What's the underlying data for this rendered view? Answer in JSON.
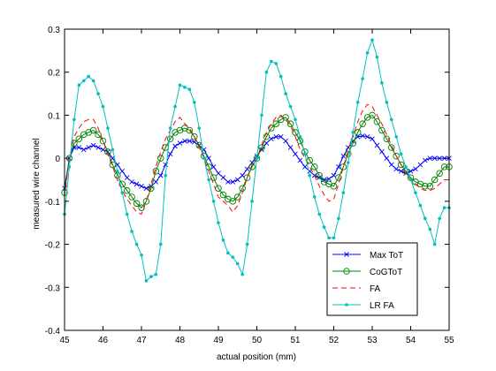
{
  "chart_data": {
    "type": "line",
    "xlabel": "actual position (mm)",
    "ylabel": "measured wire channel",
    "xlim": [
      45,
      55
    ],
    "ylim": [
      -0.4,
      0.3
    ],
    "xticks": [
      45,
      46,
      47,
      48,
      49,
      50,
      51,
      52,
      53,
      54,
      55
    ],
    "yticks": [
      -0.4,
      -0.3,
      -0.2,
      -0.1,
      0,
      0.1,
      0.2,
      0.3
    ],
    "xtick_labels": [
      "45",
      "46",
      "47",
      "48",
      "49",
      "50",
      "51",
      "52",
      "53",
      "54",
      "55"
    ],
    "ytick_labels": [
      "-0.4",
      "-0.3",
      "-0.2",
      "-0.1",
      "0",
      "0.1",
      "0.2",
      "0.3"
    ],
    "legend_position": "bottom-right",
    "series": [
      {
        "name": "Max ToT",
        "color": "#0000ff",
        "line": "solid",
        "marker": "x",
        "x": [
          45.0,
          45.125,
          45.25,
          45.375,
          45.5,
          45.625,
          45.75,
          45.875,
          46.0,
          46.125,
          46.25,
          46.375,
          46.5,
          46.625,
          46.75,
          46.875,
          47.0,
          47.125,
          47.25,
          47.375,
          47.5,
          47.625,
          47.75,
          47.875,
          48.0,
          48.125,
          48.25,
          48.375,
          48.5,
          48.625,
          48.75,
          48.875,
          49.0,
          49.125,
          49.25,
          49.375,
          49.5,
          49.625,
          49.75,
          49.875,
          50.0,
          50.125,
          50.25,
          50.375,
          50.5,
          50.625,
          50.75,
          50.875,
          51.0,
          51.125,
          51.25,
          51.375,
          51.5,
          51.625,
          51.75,
          51.875,
          52.0,
          52.125,
          52.25,
          52.375,
          52.5,
          52.625,
          52.75,
          52.875,
          53.0,
          53.125,
          53.25,
          53.375,
          53.5,
          53.625,
          53.75,
          53.875,
          54.0,
          54.125,
          54.25,
          54.375,
          54.5,
          54.625,
          54.75,
          54.875,
          55.0
        ],
        "y": [
          -0.07,
          0.0,
          0.025,
          0.025,
          0.02,
          0.025,
          0.03,
          0.025,
          0.02,
          0.015,
          0.0,
          -0.015,
          -0.03,
          -0.045,
          -0.055,
          -0.06,
          -0.065,
          -0.07,
          -0.065,
          -0.055,
          -0.04,
          -0.015,
          0.01,
          0.028,
          0.035,
          0.04,
          0.04,
          0.038,
          0.03,
          0.02,
          0.0,
          -0.02,
          -0.035,
          -0.045,
          -0.055,
          -0.055,
          -0.05,
          -0.04,
          -0.025,
          -0.01,
          0.005,
          0.02,
          0.035,
          0.045,
          0.05,
          0.05,
          0.04,
          0.025,
          0.01,
          -0.005,
          -0.02,
          -0.03,
          -0.04,
          -0.045,
          -0.05,
          -0.048,
          -0.04,
          -0.02,
          0.005,
          0.025,
          0.04,
          0.05,
          0.052,
          0.05,
          0.045,
          0.03,
          0.015,
          0.0,
          -0.015,
          -0.025,
          -0.03,
          -0.035,
          -0.03,
          -0.025,
          -0.015,
          -0.005,
          0.0,
          0.0,
          0.0,
          0.0,
          0.0
        ]
      },
      {
        "name": "CoGToT",
        "color": "#008000",
        "line": "solid",
        "marker": "o",
        "x": [
          45.0,
          45.125,
          45.25,
          45.375,
          45.5,
          45.625,
          45.75,
          45.875,
          46.0,
          46.125,
          46.25,
          46.375,
          46.5,
          46.625,
          46.75,
          46.875,
          47.0,
          47.125,
          47.25,
          47.375,
          47.5,
          47.625,
          47.75,
          47.875,
          48.0,
          48.125,
          48.25,
          48.375,
          48.5,
          48.625,
          48.75,
          48.875,
          49.0,
          49.125,
          49.25,
          49.375,
          49.5,
          49.625,
          49.75,
          49.875,
          50.0,
          50.125,
          50.25,
          50.375,
          50.5,
          50.625,
          50.75,
          50.875,
          51.0,
          51.125,
          51.25,
          51.375,
          51.5,
          51.625,
          51.75,
          51.875,
          52.0,
          52.125,
          52.25,
          52.375,
          52.5,
          52.625,
          52.75,
          52.875,
          53.0,
          53.125,
          53.25,
          53.375,
          53.5,
          53.625,
          53.75,
          53.875,
          54.0,
          54.125,
          54.25,
          54.375,
          54.5,
          54.625,
          54.75,
          54.875,
          55.0
        ],
        "y": [
          -0.08,
          0.0,
          0.035,
          0.045,
          0.055,
          0.06,
          0.065,
          0.055,
          0.04,
          0.015,
          -0.015,
          -0.04,
          -0.06,
          -0.075,
          -0.09,
          -0.105,
          -0.115,
          -0.1,
          -0.07,
          -0.03,
          0.0,
          0.025,
          0.045,
          0.06,
          0.065,
          0.07,
          0.065,
          0.05,
          0.03,
          0.005,
          -0.02,
          -0.045,
          -0.07,
          -0.085,
          -0.095,
          -0.1,
          -0.09,
          -0.07,
          -0.045,
          -0.02,
          0.0,
          0.025,
          0.05,
          0.07,
          0.08,
          0.09,
          0.095,
          0.08,
          0.06,
          0.04,
          0.015,
          -0.005,
          -0.02,
          -0.04,
          -0.055,
          -0.06,
          -0.065,
          -0.045,
          -0.02,
          0.01,
          0.035,
          0.06,
          0.08,
          0.095,
          0.1,
          0.085,
          0.065,
          0.045,
          0.025,
          0.005,
          -0.015,
          -0.03,
          -0.045,
          -0.055,
          -0.06,
          -0.065,
          -0.065,
          -0.05,
          -0.035,
          -0.02,
          -0.02
        ]
      },
      {
        "name": "FA",
        "color": "#ff0000",
        "line": "dashed",
        "marker": "none",
        "x": [
          45.0,
          45.125,
          45.25,
          45.375,
          45.5,
          45.625,
          45.75,
          45.875,
          46.0,
          46.125,
          46.25,
          46.375,
          46.5,
          46.625,
          46.75,
          46.875,
          47.0,
          47.125,
          47.25,
          47.375,
          47.5,
          47.625,
          47.75,
          47.875,
          48.0,
          48.125,
          48.25,
          48.375,
          48.5,
          48.625,
          48.75,
          48.875,
          49.0,
          49.125,
          49.25,
          49.375,
          49.5,
          49.625,
          49.75,
          49.875,
          50.0,
          50.125,
          50.25,
          50.375,
          50.5,
          50.625,
          50.75,
          50.875,
          51.0,
          51.125,
          51.25,
          51.375,
          51.5,
          51.625,
          51.75,
          51.875,
          52.0,
          52.125,
          52.25,
          52.375,
          52.5,
          52.625,
          52.75,
          52.875,
          53.0,
          53.125,
          53.25,
          53.375,
          53.5,
          53.625,
          53.75,
          53.875,
          54.0,
          54.125,
          54.25,
          54.375,
          54.5,
          54.625,
          54.75,
          54.875,
          55.0
        ],
        "y": [
          -0.09,
          0.0,
          0.05,
          0.07,
          0.085,
          0.09,
          0.09,
          0.07,
          0.04,
          0.01,
          -0.02,
          -0.05,
          -0.075,
          -0.095,
          -0.11,
          -0.125,
          -0.13,
          -0.1,
          -0.06,
          -0.02,
          0.015,
          0.045,
          0.065,
          0.085,
          0.095,
          0.08,
          0.07,
          0.05,
          0.025,
          0.0,
          -0.03,
          -0.06,
          -0.09,
          -0.1,
          -0.11,
          -0.125,
          -0.11,
          -0.08,
          -0.045,
          -0.015,
          0.0,
          0.03,
          0.06,
          0.08,
          0.095,
          0.1,
          0.09,
          0.075,
          0.05,
          0.02,
          0.0,
          -0.02,
          -0.04,
          -0.065,
          -0.085,
          -0.1,
          -0.095,
          -0.06,
          -0.02,
          0.02,
          0.05,
          0.085,
          0.11,
          0.125,
          0.12,
          0.1,
          0.08,
          0.055,
          0.03,
          0.005,
          -0.015,
          -0.035,
          -0.05,
          -0.06,
          -0.07,
          -0.075,
          -0.075,
          -0.07,
          -0.06,
          -0.05,
          -0.05
        ]
      },
      {
        "name": "LR FA",
        "color": "#00bfbf",
        "line": "solid",
        "marker": ".",
        "x": [
          45.0,
          45.125,
          45.25,
          45.375,
          45.5,
          45.625,
          45.75,
          45.875,
          46.0,
          46.125,
          46.25,
          46.375,
          46.5,
          46.625,
          46.75,
          46.875,
          47.0,
          47.125,
          47.25,
          47.375,
          47.5,
          47.625,
          47.75,
          47.875,
          48.0,
          48.125,
          48.25,
          48.375,
          48.5,
          48.625,
          48.75,
          48.875,
          49.0,
          49.125,
          49.25,
          49.375,
          49.5,
          49.625,
          49.75,
          49.875,
          50.0,
          50.125,
          50.25,
          50.375,
          50.5,
          50.625,
          50.75,
          50.875,
          51.0,
          51.125,
          51.25,
          51.375,
          51.5,
          51.625,
          51.75,
          51.875,
          52.0,
          52.125,
          52.25,
          52.375,
          52.5,
          52.625,
          52.75,
          52.875,
          53.0,
          53.125,
          53.25,
          53.375,
          53.5,
          53.625,
          53.75,
          53.875,
          54.0,
          54.125,
          54.25,
          54.375,
          54.5,
          54.625,
          54.75,
          54.875,
          55.0
        ],
        "y": [
          -0.13,
          -0.02,
          0.09,
          0.17,
          0.18,
          0.19,
          0.18,
          0.15,
          0.12,
          0.07,
          0.02,
          -0.03,
          -0.08,
          -0.13,
          -0.17,
          -0.2,
          -0.225,
          -0.285,
          -0.275,
          -0.27,
          -0.2,
          -0.04,
          0.07,
          0.12,
          0.17,
          0.165,
          0.16,
          0.13,
          0.07,
          0.0,
          -0.05,
          -0.1,
          -0.15,
          -0.19,
          -0.22,
          -0.23,
          -0.245,
          -0.27,
          -0.2,
          -0.1,
          0.0,
          0.1,
          0.2,
          0.225,
          0.22,
          0.19,
          0.15,
          0.12,
          0.09,
          0.05,
          0.01,
          -0.04,
          -0.09,
          -0.13,
          -0.16,
          -0.185,
          -0.185,
          -0.14,
          -0.08,
          -0.01,
          0.06,
          0.13,
          0.185,
          0.245,
          0.275,
          0.235,
          0.175,
          0.13,
          0.09,
          0.05,
          0.01,
          -0.02,
          -0.05,
          -0.08,
          -0.11,
          -0.14,
          -0.165,
          -0.2,
          -0.14,
          -0.115,
          -0.115
        ]
      }
    ]
  }
}
